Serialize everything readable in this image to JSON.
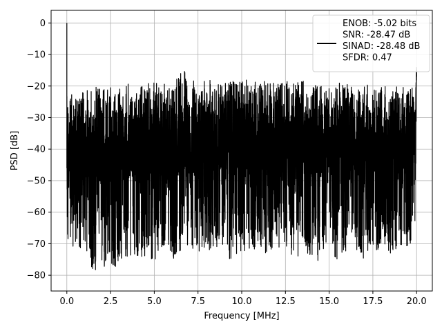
{
  "chart_data": {
    "type": "line",
    "xlabel": "Frequency [MHz]",
    "ylabel": "PSD [dB]",
    "xlim": [
      -0.9,
      20.9
    ],
    "ylim": [
      -85,
      4
    ],
    "xticks": [
      0.0,
      2.5,
      5.0,
      7.5,
      10.0,
      12.5,
      15.0,
      17.5,
      20.0
    ],
    "xtick_labels": [
      "0.0",
      "2.5",
      "5.0",
      "7.5",
      "10.0",
      "12.5",
      "15.0",
      "17.5",
      "20.0"
    ],
    "yticks": [
      0,
      -10,
      -20,
      -30,
      -40,
      -50,
      -60,
      -70,
      -80
    ],
    "ytick_labels": [
      "0",
      "−10",
      "−20",
      "−30",
      "−40",
      "−50",
      "−60",
      "−70",
      "−80"
    ],
    "grid": true,
    "legend_position": "top-right",
    "series": [
      {
        "name": "ENOB: -5.02 bits\nSNR: -28.47 dB\nSINAD: -28.48 dB\nSFDR: 0.47",
        "color": "#000000",
        "x": [
          0.0,
          0.02,
          0.05,
          0.1,
          0.3,
          0.6,
          1.0,
          1.5,
          1.7,
          2.2,
          2.5,
          2.8,
          2.9,
          3.0,
          3.3,
          4.0,
          4.5,
          5.0,
          5.8,
          6.0,
          6.8,
          7.0,
          7.5,
          8.0,
          8.5,
          9.0,
          9.2,
          10.0,
          10.5,
          11.0,
          11.5,
          12.0,
          12.3,
          12.5,
          13.0,
          13.5,
          14.0,
          14.5,
          15.0,
          15.5,
          16.0,
          16.5,
          17.0,
          17.5,
          18.0,
          18.5,
          19.0,
          19.5,
          19.9,
          20.0
        ],
        "y_top": [
          0,
          -17,
          -22,
          -23,
          -22,
          -22,
          -21,
          -21,
          -20,
          -20,
          -20,
          -20,
          -20,
          -20,
          -19,
          -19,
          -19,
          -19,
          -18,
          -18,
          -14,
          -18,
          -18,
          -18,
          -18,
          -18,
          -18,
          -18,
          -18,
          -18,
          -18,
          -18,
          -18,
          -18,
          -19,
          -18,
          -19,
          -19,
          -19,
          -19,
          -19,
          -19,
          -19,
          -20,
          -20,
          -20,
          -20,
          -20,
          -20,
          -14
        ],
        "y_bottom": [
          -46,
          -76,
          -72,
          -71,
          -72,
          -72,
          -72,
          -79,
          -80,
          -77,
          -77,
          -80,
          -81,
          -77,
          -74,
          -75,
          -75,
          -76,
          -70,
          -76,
          -73,
          -73,
          -75,
          -72,
          -72,
          -71,
          -76,
          -72,
          -73,
          -72,
          -74,
          -72,
          -71,
          -71,
          -76,
          -73,
          -75,
          -76,
          -72,
          -76,
          -74,
          -73,
          -78,
          -72,
          -72,
          -73,
          -71,
          -71,
          -68,
          -17
        ]
      }
    ]
  }
}
